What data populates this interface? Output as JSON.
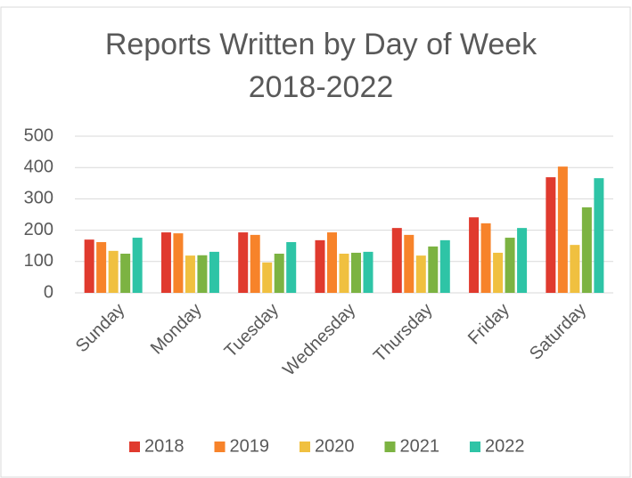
{
  "chart_data": {
    "type": "bar",
    "title": "Reports Written by Day of Week 2018-2022",
    "categories": [
      "Sunday",
      "Monday",
      "Tuesday",
      "Wednesday",
      "Thursday",
      "Friday",
      "Saturday"
    ],
    "series": [
      {
        "name": "2018",
        "color": "#e03a2e",
        "values": [
          170,
          193,
          193,
          168,
          207,
          241,
          369
        ]
      },
      {
        "name": "2019",
        "color": "#f7832a",
        "values": [
          162,
          190,
          185,
          193,
          185,
          222,
          403
        ]
      },
      {
        "name": "2020",
        "color": "#f0c040",
        "values": [
          134,
          119,
          97,
          125,
          119,
          128,
          153
        ]
      },
      {
        "name": "2021",
        "color": "#7cb342",
        "values": [
          125,
          120,
          125,
          128,
          148,
          176,
          273
        ]
      },
      {
        "name": "2022",
        "color": "#2ec4a6",
        "values": [
          176,
          131,
          162,
          131,
          168,
          207,
          366
        ]
      }
    ],
    "ylim": [
      0,
      500
    ],
    "yticks": [
      0,
      100,
      200,
      300,
      400,
      500
    ],
    "grid": true,
    "legend": "bottom"
  }
}
